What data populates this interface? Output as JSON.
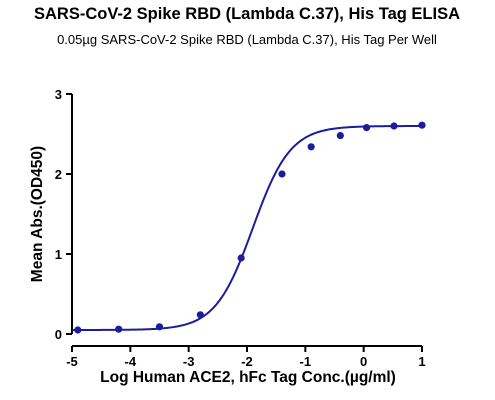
{
  "chart_data": {
    "type": "scatter",
    "title": "SARS-CoV-2 Spike RBD (Lambda C.37), His Tag ELISA",
    "subtitle": "0.05µg SARS-CoV-2 Spike RBD (Lambda C.37), His Tag Per Well",
    "xlabel": "Log Human ACE2, hFc Tag Conc.(µg/ml)",
    "ylabel": "Mean Abs.(OD450)",
    "xlim": [
      -5,
      1
    ],
    "ylim": [
      0,
      3
    ],
    "x_ticks": [
      "-5",
      "-4",
      "-3",
      "-2",
      "-1",
      "0",
      "1"
    ],
    "y_ticks": [
      "0",
      "1",
      "2",
      "3"
    ],
    "grid": false,
    "series": [
      {
        "points": [
          {
            "x": -4.9,
            "y": 0.05
          },
          {
            "x": -4.2,
            "y": 0.06
          },
          {
            "x": -3.5,
            "y": 0.09
          },
          {
            "x": -2.8,
            "y": 0.24
          },
          {
            "x": -2.1,
            "y": 0.95
          },
          {
            "x": -1.4,
            "y": 2.0
          },
          {
            "x": -0.9,
            "y": 2.34
          },
          {
            "x": -0.4,
            "y": 2.48
          },
          {
            "x": 0.05,
            "y": 2.58
          },
          {
            "x": 0.52,
            "y": 2.6
          },
          {
            "x": 1.0,
            "y": 2.61
          }
        ],
        "fit": {
          "model": "4PL",
          "bottom": 0.05,
          "top": 2.6,
          "logEC50": -1.9,
          "hill": 1.35
        }
      }
    ],
    "color": "#1c1c9c"
  }
}
